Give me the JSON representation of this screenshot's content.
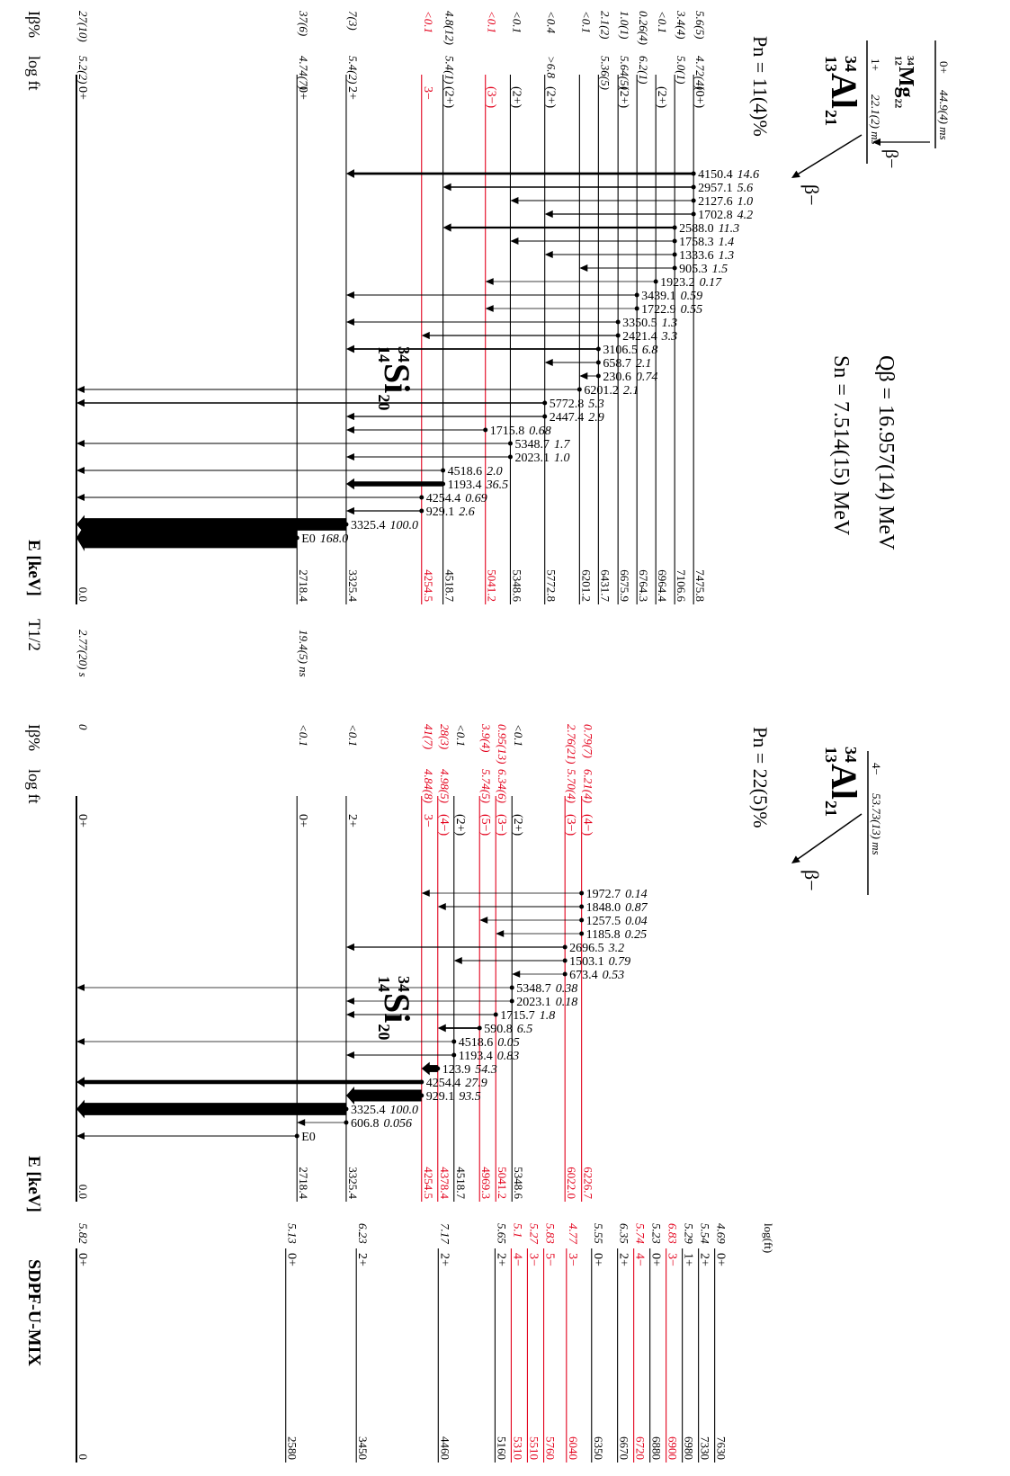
{
  "left": {
    "parents": [
      {
        "mass": "34",
        "z": "12",
        "symbol": "Mg",
        "n": "22",
        "spin": "0+",
        "half_life": "44.9(4) ms"
      },
      {
        "mass": "34",
        "z": "13",
        "symbol": "Al",
        "n": "21",
        "spin": "1+",
        "half_life": "22.1(2) ms"
      }
    ],
    "beta": [
      "β−",
      "β−"
    ],
    "pn": "Pn = 11(4)%",
    "q_beta": "Qβ = 16.957(14) MeV",
    "s_n": "Sn = 7.514(15) MeV",
    "headers": {
      "ib": "Iβ%",
      "logft": "log ft",
      "energy": "E [keV]",
      "half_life": "T1/2"
    },
    "daughter": {
      "mass": "34",
      "z": "14",
      "symbol": "Si",
      "n": "20"
    },
    "levels": [
      {
        "energy": "7475.8",
        "spin": "(0+)",
        "ib": "5.6(5)",
        "logft": "4.72(4)",
        "color": "#000000"
      },
      {
        "energy": "7106.6",
        "ib": "3.4(4)",
        "logft": "5.0(1)",
        "color": "#000000"
      },
      {
        "energy": "6964.4",
        "spin": "(2+)",
        "ib": "<0.1",
        "color": "#000000"
      },
      {
        "energy": "6764.3",
        "ib": "0.26(4)",
        "logft": "6.2(1)",
        "color": "#000000"
      },
      {
        "energy": "6675.9",
        "spin": "(2+)",
        "ib": "1.0(1)",
        "logft": "5.64(5)",
        "color": "#000000"
      },
      {
        "energy": "6431.7",
        "ib": "2.1(2)",
        "logft": "5.36(5)",
        "color": "#000000"
      },
      {
        "energy": "6201.2",
        "ib": "<0.1",
        "color": "#000000"
      },
      {
        "energy": "5772.8",
        "spin": "(2+)",
        "ib": "<0.4",
        "logft": ">6.8",
        "color": "#000000"
      },
      {
        "energy": "5348.6",
        "spin": "(2+)",
        "ib": "<0.1",
        "color": "#000000"
      },
      {
        "energy": "5041.2",
        "spin": "(3−)",
        "ib": "<0.1",
        "color": "#e3001b"
      },
      {
        "energy": "4518.7",
        "spin": "(2+)",
        "ib": "4.8(12)",
        "logft": "5.4(1)",
        "color": "#000000"
      },
      {
        "energy": "4254.5",
        "spin": "3−",
        "ib": "<0.1",
        "color": "#e3001b"
      },
      {
        "energy": "3325.4",
        "spin": "2+",
        "ib": "7(3)",
        "logft": "5.4(2)",
        "color": "#000000"
      },
      {
        "energy": "2718.4",
        "spin": "0+",
        "ib": "37(6)",
        "logft": "4.74(7)",
        "half_life": "19.4(5) ns",
        "color": "#000000"
      },
      {
        "energy": "0.0",
        "spin": "0+",
        "ib": "27(10)",
        "logft": "5.2(2)",
        "half_life": "2.77(20) s",
        "color": "#000000"
      }
    ],
    "gammas": [
      {
        "energy": "4150.4",
        "intensity": "14.6"
      },
      {
        "energy": "2957.1",
        "intensity": "5.6"
      },
      {
        "energy": "2127.6",
        "intensity": "1.0"
      },
      {
        "energy": "1702.8",
        "intensity": "4.2"
      },
      {
        "energy": "2588.0",
        "intensity": "11.3"
      },
      {
        "energy": "1758.3",
        "intensity": "1.4"
      },
      {
        "energy": "1333.6",
        "intensity": "1.3"
      },
      {
        "energy": "905.3",
        "intensity": "1.5"
      },
      {
        "energy": "1923.2",
        "intensity": "0.17"
      },
      {
        "energy": "3439.1",
        "intensity": "0.59"
      },
      {
        "energy": "1722.9",
        "intensity": "0.55"
      },
      {
        "energy": "3350.5",
        "intensity": "1.3"
      },
      {
        "energy": "2421.4",
        "intensity": "3.3"
      },
      {
        "energy": "3106.5",
        "intensity": "6.8"
      },
      {
        "energy": "658.7",
        "intensity": "2.1"
      },
      {
        "energy": "230.6",
        "intensity": "0.74"
      },
      {
        "energy": "6201.2",
        "intensity": "2.1"
      },
      {
        "energy": "5772.8",
        "intensity": "5.3"
      },
      {
        "energy": "2447.4",
        "intensity": "2.9"
      },
      {
        "energy": "1715.8",
        "intensity": "0.68"
      },
      {
        "energy": "5348.7",
        "intensity": "1.7"
      },
      {
        "energy": "2023.1",
        "intensity": "1.0"
      },
      {
        "energy": "4518.6",
        "intensity": "2.0"
      },
      {
        "energy": "1193.4",
        "intensity": "36.5"
      },
      {
        "energy": "4254.4",
        "intensity": "0.69"
      },
      {
        "energy": "929.1",
        "intensity": "2.6"
      },
      {
        "energy": "3325.4",
        "intensity": "100.0"
      },
      {
        "energy": "E0",
        "intensity": "168.0"
      }
    ]
  },
  "middle": {
    "parent": {
      "mass": "34",
      "z": "13",
      "symbol": "Al",
      "n": "21",
      "spin": "4−",
      "half_life": "53.73(13) ms"
    },
    "beta": "β−",
    "pn": "Pn = 22(5)%",
    "headers": {
      "ib": "Iβ%",
      "logft": "log ft",
      "energy": "E [keV]"
    },
    "daughter": {
      "mass": "34",
      "z": "14",
      "symbol": "Si",
      "n": "20"
    },
    "levels": [
      {
        "energy": "6226.7",
        "spin": "(4−)",
        "ib": "0.79(7)",
        "logft": "6.21(4)",
        "color": "#e3001b"
      },
      {
        "energy": "6022.0",
        "spin": "(3−)",
        "ib": "2.76(21)",
        "logft": "5.70(4)",
        "color": "#e3001b"
      },
      {
        "energy": "5348.6",
        "spin": "(2+)",
        "ib": "<0.1",
        "color": "#000000"
      },
      {
        "energy": "5041.2",
        "spin": "(3−)",
        "ib": "0.95(13)",
        "logft": "6.34(6)",
        "color": "#e3001b"
      },
      {
        "energy": "4969.3",
        "spin": "(5−)",
        "ib": "3.9(4)",
        "logft": "5.74(5)",
        "color": "#e3001b"
      },
      {
        "energy": "4518.7",
        "spin": "(2+)",
        "ib": "<0.1",
        "color": "#000000"
      },
      {
        "energy": "4378.4",
        "spin": "(4−)",
        "ib": "28(3)",
        "logft": "4.98(5)",
        "color": "#e3001b"
      },
      {
        "energy": "4254.5",
        "spin": "3−",
        "ib": "41(7)",
        "logft": "4.84(8)",
        "color": "#e3001b"
      },
      {
        "energy": "3325.4",
        "spin": "2+",
        "ib": "<0.1",
        "color": "#000000"
      },
      {
        "energy": "2718.4",
        "spin": "0+",
        "ib": "<0.1",
        "color": "#000000"
      },
      {
        "energy": "0.0",
        "spin": "0+",
        "ib": "0",
        "color": "#000000"
      }
    ],
    "gammas": [
      {
        "energy": "1972.7",
        "intensity": "0.14"
      },
      {
        "energy": "1848.0",
        "intensity": "0.87"
      },
      {
        "energy": "1257.5",
        "intensity": "0.04"
      },
      {
        "energy": "1185.8",
        "intensity": "0.25"
      },
      {
        "energy": "2696.5",
        "intensity": "3.2"
      },
      {
        "energy": "1503.1",
        "intensity": "0.79"
      },
      {
        "energy": "673.4",
        "intensity": "0.53"
      },
      {
        "energy": "5348.7",
        "intensity": "0.38"
      },
      {
        "energy": "2023.1",
        "intensity": "0.18"
      },
      {
        "energy": "1715.7",
        "intensity": "1.8"
      },
      {
        "energy": "590.8",
        "intensity": "6.5"
      },
      {
        "energy": "4518.6",
        "intensity": "0.05"
      },
      {
        "energy": "1193.4",
        "intensity": "0.83"
      },
      {
        "energy": "123.9",
        "intensity": "54.3"
      },
      {
        "energy": "4254.4",
        "intensity": "27.9"
      },
      {
        "energy": "929.1",
        "intensity": "93.5"
      },
      {
        "energy": "3325.4",
        "intensity": "100.0"
      },
      {
        "energy": "606.8",
        "intensity": "0.056"
      },
      {
        "energy": "E0"
      }
    ]
  },
  "right": {
    "header": "log(ft)",
    "title": "SDPF-U-MIX",
    "levels": [
      {
        "energy": "7630",
        "spin": "0+",
        "logft": "4.69",
        "color": "#000000"
      },
      {
        "energy": "7330",
        "spin": "2+",
        "logft": "5.54",
        "color": "#000000"
      },
      {
        "energy": "6980",
        "spin": "1+",
        "logft": "5.29",
        "color": "#000000"
      },
      {
        "energy": "6900",
        "spin": "3−",
        "logft": "6.83",
        "color": "#e3001b"
      },
      {
        "energy": "6880",
        "spin": "0+",
        "logft": "5.23",
        "color": "#000000"
      },
      {
        "energy": "6720",
        "spin": "4−",
        "logft": "5.74",
        "color": "#e3001b"
      },
      {
        "energy": "6670",
        "spin": "2+",
        "logft": "6.35",
        "color": "#000000"
      },
      {
        "energy": "6350",
        "spin": "0+",
        "logft": "5.55",
        "color": "#000000"
      },
      {
        "energy": "6040",
        "spin": "3−",
        "logft": "4.77",
        "color": "#e3001b"
      },
      {
        "energy": "5760",
        "spin": "5−",
        "logft": "5.83",
        "color": "#e3001b"
      },
      {
        "energy": "5510",
        "spin": "3−",
        "logft": "5.27",
        "color": "#e3001b"
      },
      {
        "energy": "5310",
        "spin": "4−",
        "logft": "5.1",
        "color": "#e3001b"
      },
      {
        "energy": "5160",
        "spin": "2+",
        "logft": "5.65",
        "color": "#000000"
      },
      {
        "energy": "4460",
        "spin": "2+",
        "logft": "7.17",
        "color": "#000000"
      },
      {
        "energy": "3450",
        "spin": "2+",
        "logft": "6.23",
        "color": "#000000"
      },
      {
        "energy": "2580",
        "spin": "0+",
        "logft": "5.13",
        "color": "#000000"
      },
      {
        "energy": "0",
        "spin": "0+",
        "logft": "5.82",
        "color": "#000000"
      }
    ]
  }
}
